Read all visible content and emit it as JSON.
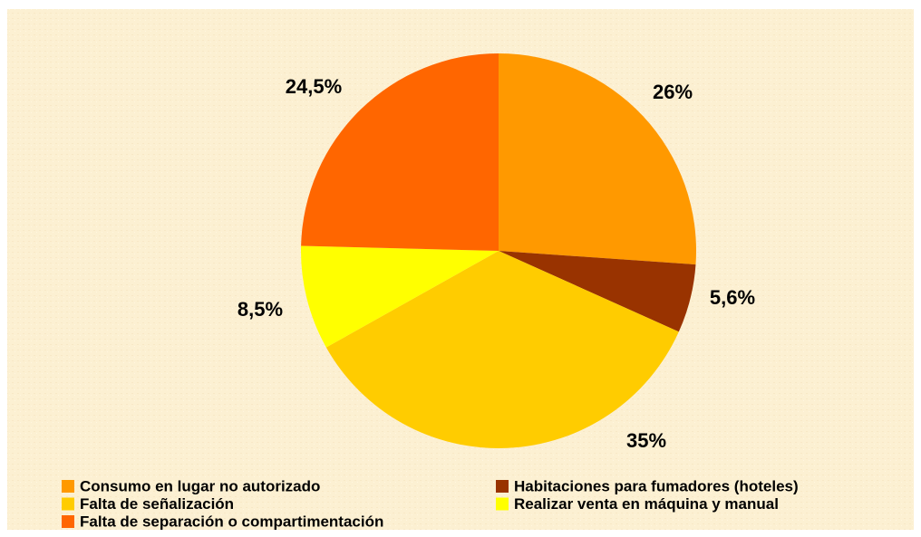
{
  "chart_data": {
    "type": "pie",
    "categories": [
      "Consumo en lugar no autorizado",
      "Habitaciones para fumadores (hoteles)",
      "Falta de señalización",
      "Realizar venta en máquina y manual",
      "Falta de separación o compartimentación"
    ],
    "values": [
      26,
      5.6,
      35,
      8.5,
      24.5
    ],
    "value_labels": [
      "26%",
      "5,6%",
      "35%",
      "8,5%",
      "24,5%"
    ],
    "colors": [
      "#FF9900",
      "#993300",
      "#FFCC00",
      "#FFFF00",
      "#FF6600"
    ],
    "legend": "bottom"
  }
}
